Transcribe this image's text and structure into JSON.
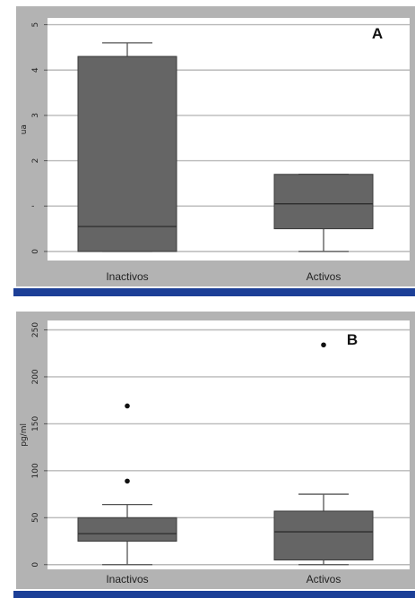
{
  "chart_data": [
    {
      "type": "boxplot",
      "panel_label": "A",
      "ylabel": "ua",
      "ylim": [
        -0.2,
        5.15
      ],
      "yticks": [
        {
          "v": 0,
          "t": "0"
        },
        {
          "v": 1,
          "t": "'"
        },
        {
          "v": 2,
          "t": "2"
        },
        {
          "v": 3,
          "t": "3"
        },
        {
          "v": 4,
          "t": "4"
        },
        {
          "v": 5,
          "t": "5"
        }
      ],
      "categories": [
        "Inactivos",
        "Activos"
      ],
      "boxes": [
        {
          "whisker_low": 0,
          "q1": 0,
          "median": 0.55,
          "q3": 4.3,
          "whisker_high": 4.6,
          "outliers": []
        },
        {
          "whisker_low": 0,
          "q1": 0.5,
          "median": 1.05,
          "q3": 1.7,
          "whisker_high": 1.7,
          "outliers": []
        }
      ],
      "grid": true
    },
    {
      "type": "boxplot",
      "panel_label": "B",
      "ylabel": "pg/ml",
      "ylim": [
        -5,
        260
      ],
      "yticks": [
        {
          "v": 0,
          "t": "0"
        },
        {
          "v": 50,
          "t": "50"
        },
        {
          "v": 100,
          "t": "100"
        },
        {
          "v": 150,
          "t": "150"
        },
        {
          "v": 200,
          "t": "200"
        },
        {
          "v": 250,
          "t": "250"
        }
      ],
      "categories": [
        "Inactivos",
        "Activos"
      ],
      "boxes": [
        {
          "whisker_low": 0,
          "q1": 25,
          "median": 33,
          "q3": 50,
          "whisker_high": 64,
          "outliers": [
            89,
            169
          ]
        },
        {
          "whisker_low": 0,
          "q1": 5,
          "median": 35,
          "q3": 57,
          "whisker_high": 75,
          "outliers": [
            234
          ]
        }
      ],
      "grid": true
    }
  ],
  "colors": {
    "frame": "#b3b3b3",
    "plot_bg": "#ffffff",
    "grid": "#b9b9b9",
    "box_fill": "#656565",
    "box_stroke": "#3a3a3a",
    "median": "#2c2c2c",
    "whisker": "#555555",
    "outlier": "#111111",
    "accent_bar": "#1c3f97"
  }
}
